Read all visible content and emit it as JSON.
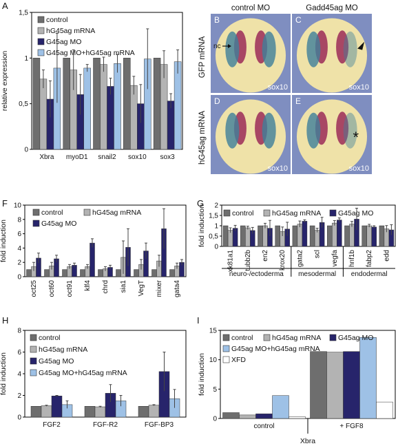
{
  "panel_letters": {
    "A": "A",
    "F": "F",
    "G": "G",
    "H": "H",
    "I": "I"
  },
  "embryo_panel": {
    "letter": "",
    "column_headers": [
      "control MO",
      "Gadd45ag MO"
    ],
    "row_labels": [
      "GFP mRNA",
      "hG45ag mRNA"
    ],
    "tiles": [
      {
        "letter": "B",
        "label": "sox10",
        "annotation": "nc"
      },
      {
        "letter": "C",
        "label": "sox10",
        "annotation": "arrowhead"
      },
      {
        "letter": "D",
        "label": "sox10",
        "annotation": ""
      },
      {
        "letter": "E",
        "label": "sox10",
        "annotation": "*"
      }
    ],
    "colors": {
      "background": "#7f8ec0",
      "embryo": "#efe2a8",
      "stain_red": "#9b2b58",
      "stain_blue": "#3f7f9a"
    }
  },
  "chart_data": [
    {
      "id": "A",
      "type": "bar",
      "ylabel": "relative expression",
      "ylim": [
        0,
        1.5
      ],
      "yticks": [
        0,
        0.5,
        1,
        1.5
      ],
      "ytick_labels": [
        "0",
        "0,5",
        "1",
        "1,5"
      ],
      "categories": [
        "Xbra",
        "myoD1",
        "snail2",
        "sox10",
        "sox3"
      ],
      "legend_position": "top-left",
      "series": [
        {
          "name": "control",
          "color": "#6e6e6e",
          "values": [
            1,
            1,
            1,
            1,
            1
          ],
          "errors": [
            0,
            0,
            0,
            0,
            0
          ]
        },
        {
          "name": "hG45ag mRNA",
          "color": "#b3b3b3",
          "values": [
            0.77,
            0.87,
            0.93,
            0.7,
            0.93
          ],
          "errors": [
            0.1,
            0.22,
            0.08,
            0.1,
            0.15
          ]
        },
        {
          "name": "G45ag MO",
          "color": "#27246b",
          "values": [
            0.55,
            0.6,
            0.69,
            0.5,
            0.53
          ],
          "errors": [
            0.2,
            0.22,
            0.09,
            0.21,
            0.08
          ]
        },
        {
          "name": "G45ag MO+hG45ag mRNA",
          "color": "#9ec1e6",
          "values": [
            0.89,
            0.89,
            0.94,
            0.99,
            0.96
          ],
          "errors": [
            0.38,
            0.04,
            0.1,
            0.33,
            0.13
          ]
        }
      ]
    },
    {
      "id": "F",
      "type": "bar",
      "ylabel": "fold induction",
      "ylim": [
        0,
        10
      ],
      "yticks": [
        0,
        2,
        4,
        6,
        8,
        10
      ],
      "ytick_labels": [
        "0",
        "2",
        "4",
        "6",
        "8",
        "10"
      ],
      "categories": [
        "oct25",
        "oct60",
        "oct91",
        "klf4",
        "chrd",
        "sia1",
        "VegT",
        "mixer",
        "gata4"
      ],
      "legend_position": "top-left",
      "series": [
        {
          "name": "control",
          "color": "#6e6e6e",
          "values": [
            1,
            1,
            1,
            1,
            1,
            1,
            1,
            1,
            1
          ],
          "errors": [
            0,
            0,
            0,
            0,
            0,
            0,
            0,
            0,
            0
          ]
        },
        {
          "name": "hG45ag mRNA",
          "color": "#b3b3b3",
          "values": [
            1.4,
            1.5,
            1.4,
            1.4,
            1.1,
            2.7,
            1.7,
            2.2,
            1.5
          ],
          "errors": [
            0.6,
            0.5,
            0.3,
            0.3,
            0.3,
            2.3,
            0.7,
            0.8,
            0.4
          ]
        },
        {
          "name": "G45ag MO",
          "color": "#27246b",
          "values": [
            2.6,
            2.5,
            1.6,
            4.7,
            1.3,
            4.1,
            3.6,
            6.7,
            2.0
          ],
          "errors": [
            0.7,
            0.5,
            0.3,
            0.6,
            0.3,
            2.6,
            1.1,
            2.8,
            0.4
          ]
        }
      ]
    },
    {
      "id": "G",
      "type": "bar",
      "ylabel": "fold induction",
      "ylim": [
        0,
        2
      ],
      "yticks": [
        0,
        0.5,
        1,
        1.5,
        2
      ],
      "ytick_labels": [
        "0",
        "0,5",
        "1",
        "1,5",
        "2"
      ],
      "categories": [
        "xk81a1",
        "tubb2b",
        "en2",
        "krox20",
        "gata2",
        "scl",
        "vegfa",
        "hnf1b",
        "fabp2",
        "edd"
      ],
      "groups": [
        {
          "label": "neuro-/ectoderma",
          "from": 0,
          "to": 3
        },
        {
          "label": "mesodermal",
          "from": 4,
          "to": 6
        },
        {
          "label": "endodermal",
          "from": 7,
          "to": 9
        }
      ],
      "legend_position": "top",
      "series": [
        {
          "name": "control",
          "color": "#6e6e6e",
          "values": [
            1,
            1,
            1,
            1,
            1,
            1,
            1,
            1,
            1,
            1
          ],
          "errors": [
            0,
            0,
            0,
            0,
            0,
            0,
            0,
            0,
            0,
            0
          ]
        },
        {
          "name": "hG45ag mRNA",
          "color": "#b3b3b3",
          "values": [
            0.78,
            0.9,
            1.0,
            0.72,
            1.08,
            0.78,
            1.13,
            1.08,
            1.0,
            0.85
          ],
          "errors": [
            0.12,
            0.08,
            0.12,
            0.22,
            0.15,
            0.1,
            0.12,
            0.13,
            0.07,
            0.16
          ]
        },
        {
          "name": "G45ag MO",
          "color": "#27246b",
          "values": [
            0.88,
            0.77,
            0.88,
            0.84,
            1.22,
            1.16,
            1.28,
            1.32,
            0.94,
            0.8
          ],
          "errors": [
            0.14,
            0.15,
            0.38,
            0.33,
            0.07,
            0.25,
            0.1,
            0.53,
            0.06,
            0.25
          ]
        }
      ]
    },
    {
      "id": "H",
      "type": "bar",
      "ylabel": "fold induction",
      "ylim": [
        0,
        8
      ],
      "yticks": [
        0,
        2,
        4,
        6,
        8
      ],
      "ytick_labels": [
        "0",
        "2",
        "4",
        "6",
        "8"
      ],
      "categories": [
        "FGF2",
        "FGF-R2",
        "FGF-BP3"
      ],
      "legend_position": "top-left",
      "series": [
        {
          "name": "control",
          "color": "#6e6e6e",
          "values": [
            1,
            1,
            1
          ],
          "errors": [
            0,
            0,
            0
          ]
        },
        {
          "name": "hG45ag mRNA",
          "color": "#b3b3b3",
          "values": [
            1.05,
            0.95,
            1.1
          ],
          "errors": [
            0.05,
            0.05,
            0.05
          ]
        },
        {
          "name": "G45ag MO",
          "color": "#27246b",
          "values": [
            1.95,
            2.2,
            4.2
          ],
          "errors": [
            0.05,
            0.8,
            1.8
          ]
        },
        {
          "name": "G45ag MO+hG45ag mRNA",
          "color": "#9ec1e6",
          "values": [
            1.15,
            1.5,
            1.7
          ],
          "errors": [
            0.35,
            0.5,
            0.85
          ]
        }
      ]
    },
    {
      "id": "I",
      "type": "bar",
      "ylabel": "fold induction",
      "ylim": [
        0,
        15
      ],
      "yticks": [
        0,
        5,
        10,
        15
      ],
      "ytick_labels": [
        "0",
        "5",
        "10",
        "15"
      ],
      "categories": [
        "control",
        "+ FGF8"
      ],
      "xlabel": "Xbra",
      "legend_position": "top",
      "series": [
        {
          "name": "control",
          "color": "#6e6e6e",
          "values": [
            1.0,
            11.4
          ]
        },
        {
          "name": "hG45ag mRNA",
          "color": "#b3b3b3",
          "values": [
            0.6,
            11.3
          ]
        },
        {
          "name": "G45ag MO",
          "color": "#27246b",
          "values": [
            0.8,
            11.4
          ]
        },
        {
          "name": "G45ag MO+hG45ag mRNA",
          "color": "#9ec1e6",
          "values": [
            3.9,
            13.8
          ]
        },
        {
          "name": "XFD",
          "color": "#ffffff",
          "values": [
            0.3,
            2.8
          ]
        }
      ]
    }
  ]
}
